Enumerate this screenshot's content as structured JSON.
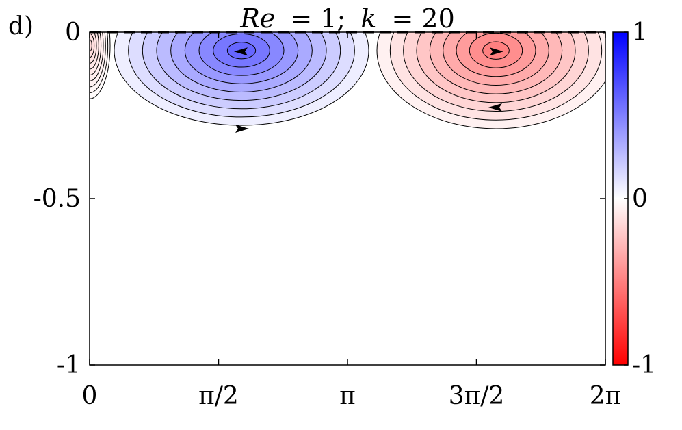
{
  "panel_label": "d)",
  "chart_data": {
    "type": "heatmap",
    "title": "Re = 1; k = 20",
    "title_parts": {
      "re": "Re",
      "eq1": "= 1;",
      "k": "k",
      "eq2": "= 20"
    },
    "xlabel": "",
    "ylabel": "",
    "xlim": [
      0,
      6.2832
    ],
    "ylim": [
      -1,
      0
    ],
    "x_ticks": [
      {
        "value": 0,
        "label": "0"
      },
      {
        "value": 1.5708,
        "label": "π/2"
      },
      {
        "value": 3.1416,
        "label": "π"
      },
      {
        "value": 4.7124,
        "label": "3π/2"
      },
      {
        "value": 6.2832,
        "label": "2π"
      }
    ],
    "y_ticks": [
      {
        "value": 0,
        "label": "0"
      },
      {
        "value": -0.5,
        "label": "-0.5"
      },
      {
        "value": -1,
        "label": "-1"
      }
    ],
    "colorbar": {
      "range": [
        -1,
        1
      ],
      "ticks": [
        {
          "value": 1,
          "label": "1"
        },
        {
          "value": 0,
          "label": "0"
        },
        {
          "value": -1,
          "label": "-1"
        }
      ],
      "color_max": "#0000ff",
      "color_mid": "#ffffff",
      "color_min": "#ff0000"
    },
    "surface_line": {
      "y": 0,
      "style": "dashed"
    },
    "cells": [
      {
        "sign": "positive",
        "x_center": 1.85,
        "y_center": -0.055,
        "x_min": 0.3,
        "x_max": 3.35,
        "depth": 0.28,
        "peak_value": 0.6
      },
      {
        "sign": "negative",
        "x_center": 4.95,
        "y_center": -0.055,
        "x_min": 3.5,
        "x_max": 6.283,
        "depth": 0.29,
        "peak_value": -0.5
      },
      {
        "sign": "negative",
        "x_center": 0.0,
        "y_center": -0.04,
        "x_min": 0.0,
        "x_max": 0.25,
        "depth": 0.2,
        "peak_value": -0.15
      }
    ],
    "contour_levels": 9,
    "flow_arrows": [
      {
        "x": 1.85,
        "y": -0.058,
        "direction": "left"
      },
      {
        "x": 1.85,
        "y": -0.29,
        "direction": "right"
      },
      {
        "x": 4.95,
        "y": -0.058,
        "direction": "right"
      },
      {
        "x": 4.95,
        "y": -0.226,
        "direction": "left"
      }
    ]
  }
}
